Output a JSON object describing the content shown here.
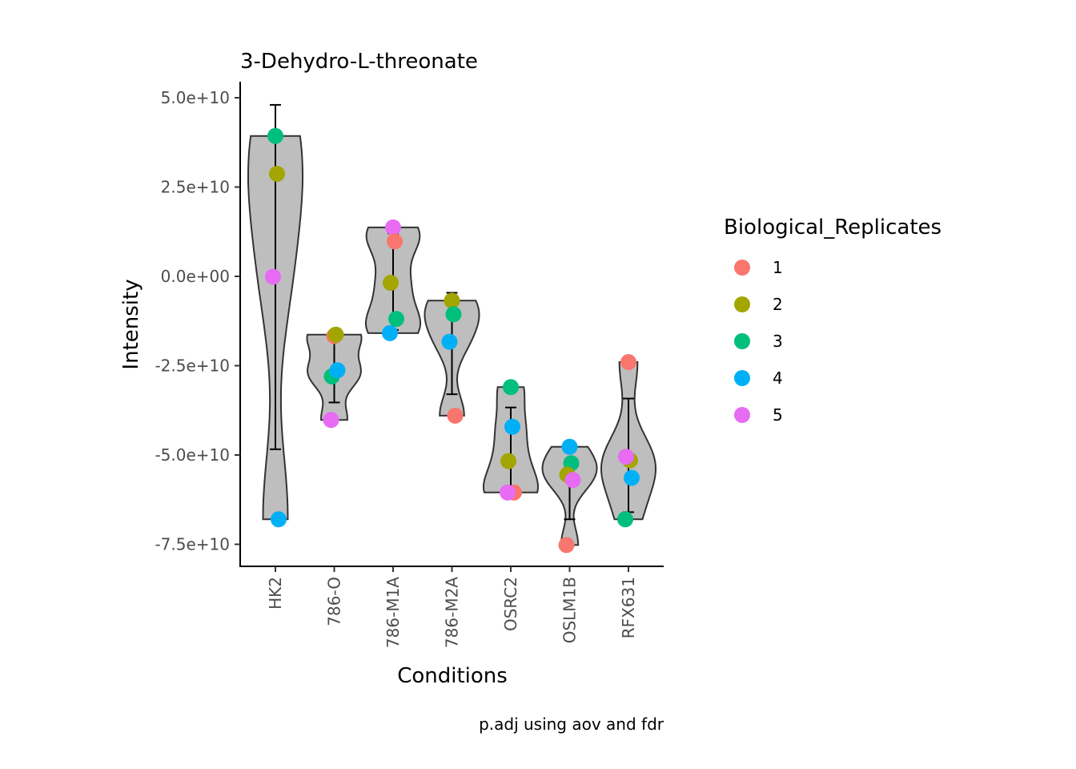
{
  "chart_data": {
    "type": "violin",
    "title": "3-Dehydro-L-threonate",
    "xlabel": "Conditions",
    "ylabel": "Intensity",
    "caption": "p.adj using  aov and fdr",
    "ylim": [
      -80000000000,
      53000000000
    ],
    "y_ticks": [
      {
        "value": 50000000000,
        "label": "5.0e+10"
      },
      {
        "value": 25000000000,
        "label": "2.5e+10"
      },
      {
        "value": 0,
        "label": "0.0e+00"
      },
      {
        "value": -25000000000,
        "label": "-2.5e+10"
      },
      {
        "value": -50000000000,
        "label": "-5.0e+10"
      },
      {
        "value": -75000000000,
        "label": "-7.5e+10"
      }
    ],
    "categories": [
      "HK2",
      "786-O",
      "786-M1A",
      "786-M2A",
      "OSRC2",
      "OSLM1B",
      "RFX631"
    ],
    "legend": {
      "title": "Biological_Replicates",
      "position": "right",
      "items": [
        {
          "label": "1",
          "color": "#F8766D"
        },
        {
          "label": "2",
          "color": "#A3A500"
        },
        {
          "label": "3",
          "color": "#00BF7D"
        },
        {
          "label": "4",
          "color": "#00B0F6"
        },
        {
          "label": "5",
          "color": "#E76BF3"
        }
      ]
    },
    "violin_fill": "#bebebe",
    "groups": [
      {
        "category": "HK2",
        "points": [
          {
            "replicate": "3",
            "y": 39300000000
          },
          {
            "replicate": "2",
            "y": 28700000000
          },
          {
            "replicate": "5",
            "y": -100000000
          },
          {
            "replicate": "4",
            "y": -68000000000
          }
        ],
        "errorbar": [
          -48400000000,
          48000000000
        ]
      },
      {
        "category": "786-O",
        "points": [
          {
            "replicate": "1",
            "y": -16700000000
          },
          {
            "replicate": "2",
            "y": -16300000000
          },
          {
            "replicate": "3",
            "y": -28000000000
          },
          {
            "replicate": "4",
            "y": -26300000000
          },
          {
            "replicate": "5",
            "y": -40200000000
          }
        ],
        "errorbar": [
          -35300000000,
          -16500000000
        ]
      },
      {
        "category": "786-M1A",
        "points": [
          {
            "replicate": "5",
            "y": 13700000000
          },
          {
            "replicate": "1",
            "y": 9800000000
          },
          {
            "replicate": "2",
            "y": -1800000000
          },
          {
            "replicate": "3",
            "y": -11900000000
          },
          {
            "replicate": "4",
            "y": -15900000000
          }
        ],
        "errorbar": [
          -15000000000,
          12000000000
        ]
      },
      {
        "category": "786-M2A",
        "points": [
          {
            "replicate": "2",
            "y": -6800000000
          },
          {
            "replicate": "3",
            "y": -10600000000
          },
          {
            "replicate": "4",
            "y": -18300000000
          },
          {
            "replicate": "1",
            "y": -39000000000
          }
        ],
        "errorbar": [
          -33000000000,
          -4600000000
        ]
      },
      {
        "category": "OSRC2",
        "points": [
          {
            "replicate": "3",
            "y": -31000000000
          },
          {
            "replicate": "4",
            "y": -42100000000
          },
          {
            "replicate": "2",
            "y": -51700000000
          },
          {
            "replicate": "1",
            "y": -60500000000
          },
          {
            "replicate": "5",
            "y": -60500000000
          }
        ],
        "errorbar": [
          -61000000000,
          -36700000000
        ]
      },
      {
        "category": "OSLM1B",
        "points": [
          {
            "replicate": "4",
            "y": -47700000000
          },
          {
            "replicate": "3",
            "y": -52300000000
          },
          {
            "replicate": "2",
            "y": -55500000000
          },
          {
            "replicate": "5",
            "y": -57000000000
          },
          {
            "replicate": "1",
            "y": -75200000000
          }
        ],
        "errorbar": [
          -68000000000,
          -53500000000
        ]
      },
      {
        "category": "RFX631",
        "points": [
          {
            "replicate": "1",
            "y": -24000000000
          },
          {
            "replicate": "2",
            "y": -51500000000
          },
          {
            "replicate": "5",
            "y": -50500000000
          },
          {
            "replicate": "4",
            "y": -56400000000
          },
          {
            "replicate": "3",
            "y": -68000000000
          }
        ],
        "errorbar": [
          -66000000000,
          -34200000000
        ]
      }
    ]
  }
}
